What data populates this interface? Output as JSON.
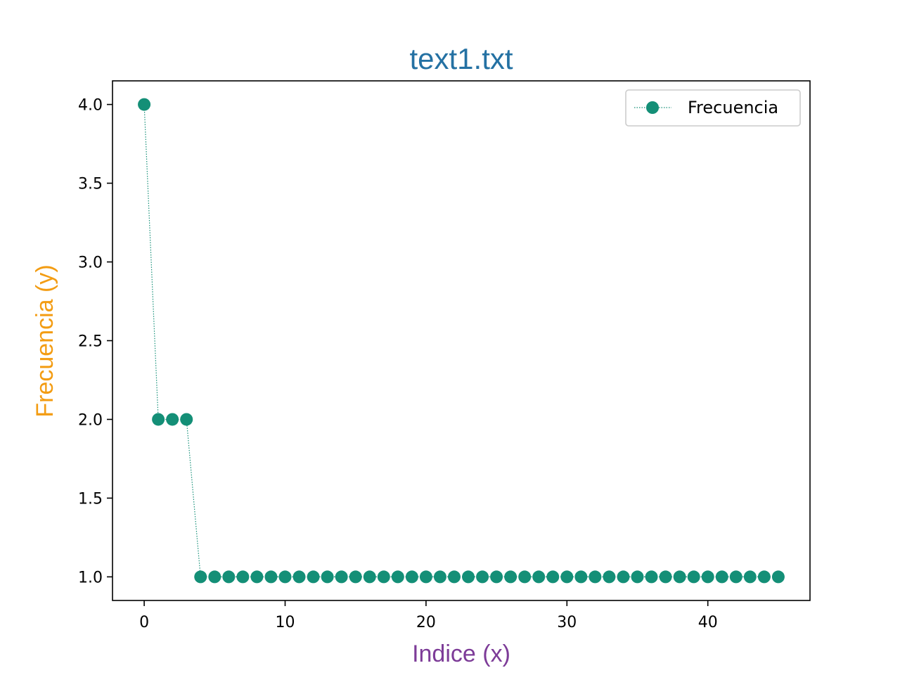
{
  "chart_data": {
    "type": "line",
    "title": "text1.txt",
    "xlabel": "Indice (x)",
    "ylabel": "Frecuencia (y)",
    "xlim": [
      -2.25,
      47.25
    ],
    "ylim": [
      0.85,
      4.15
    ],
    "xticks": [
      0,
      10,
      20,
      30,
      40
    ],
    "yticks": [
      1.0,
      1.5,
      2.0,
      2.5,
      3.0,
      3.5,
      4.0
    ],
    "ytick_labels": [
      "1.0",
      "1.5",
      "2.0",
      "2.5",
      "3.0",
      "3.5",
      "4.0"
    ],
    "grid": false,
    "legend_position": "top-right",
    "series": [
      {
        "name": "Frecuencia",
        "color": "#148f77",
        "line_style": "dotted",
        "marker": "circle",
        "x": [
          0,
          1,
          2,
          3,
          4,
          5,
          6,
          7,
          8,
          9,
          10,
          11,
          12,
          13,
          14,
          15,
          16,
          17,
          18,
          19,
          20,
          21,
          22,
          23,
          24,
          25,
          26,
          27,
          28,
          29,
          30,
          31,
          32,
          33,
          34,
          35,
          36,
          37,
          38,
          39,
          40,
          41,
          42,
          43,
          44,
          45
        ],
        "y": [
          4,
          2,
          2,
          2,
          1,
          1,
          1,
          1,
          1,
          1,
          1,
          1,
          1,
          1,
          1,
          1,
          1,
          1,
          1,
          1,
          1,
          1,
          1,
          1,
          1,
          1,
          1,
          1,
          1,
          1,
          1,
          1,
          1,
          1,
          1,
          1,
          1,
          1,
          1,
          1,
          1,
          1,
          1,
          1,
          1,
          1
        ]
      }
    ],
    "colors": {
      "title": "#2471a3",
      "xlabel": "#7d3c98",
      "ylabel": "#f39c12",
      "series": "#148f77"
    }
  }
}
